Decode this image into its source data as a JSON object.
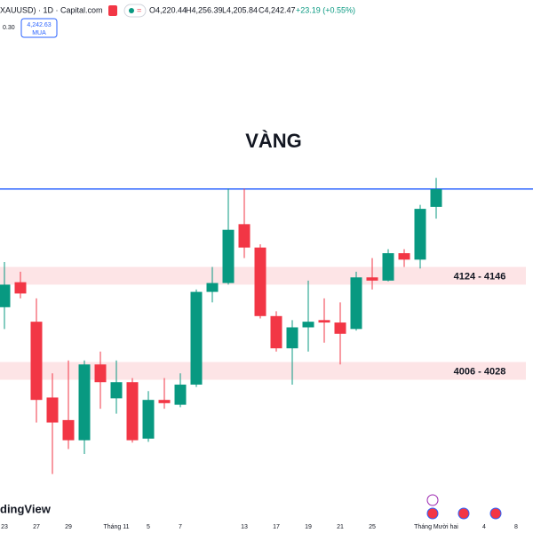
{
  "header": {
    "symbol": "XAUUSD) · 1D · Capital.com",
    "open": "O4,220.44",
    "high": "H4,256.39",
    "low": "L4,205.84",
    "close": "C4,242.47",
    "change": "+23.19 (+0.55%)",
    "spread": "0.30",
    "buy_price": "4,242.63",
    "buy_label": "MUA"
  },
  "logo": "dingView",
  "chart_data": {
    "type": "candlestick",
    "title": "VÀNG",
    "categories": [
      "23",
      null,
      "27",
      null,
      "29",
      null,
      null,
      "Tháng 11",
      null,
      "5",
      null,
      "7",
      null,
      null,
      null,
      "13",
      null,
      "17",
      null,
      "19",
      null,
      "21",
      null,
      "25",
      null,
      null,
      null,
      "Tháng Mười hai",
      null,
      null,
      "4",
      null,
      "8"
    ],
    "open": [
      4096,
      4127,
      4078,
      3984,
      3956,
      3931,
      4025,
      3983,
      4003,
      3933,
      3981,
      3975,
      4000,
      4115,
      4126,
      4199,
      4170,
      4085,
      4045,
      4071,
      4080,
      4077,
      4069,
      4133,
      4129,
      4163,
      4155,
      4220.44,
      null,
      null,
      null,
      null,
      null
    ],
    "high": [
      4152,
      4140,
      4107,
      4014,
      4030,
      4030,
      4041,
      4030,
      4008,
      3992,
      4008,
      4014,
      4118,
      4146,
      4243,
      4243,
      4174,
      4091,
      4080,
      4129,
      4107,
      4102,
      4140,
      4157,
      4168,
      4168,
      4223,
      4256.39,
      null,
      null,
      null,
      null,
      null
    ],
    "low": [
      4069,
      4107,
      3953,
      3889,
      3920,
      3914,
      3970,
      3964,
      3928,
      3929,
      3970,
      3972,
      3997,
      4102,
      4124,
      4157,
      4082,
      4041,
      4000,
      4041,
      4052,
      4025,
      4067,
      4118,
      4128,
      4146,
      4144,
      4205.84,
      null,
      null,
      null,
      null,
      null
    ],
    "close": [
      4124,
      4113,
      3981,
      3953,
      3931,
      4025,
      4003,
      4003,
      3931,
      3981,
      3977,
      4000,
      4115,
      4126,
      4192,
      4170,
      4085,
      4045,
      4071,
      4078,
      4077,
      4063,
      4133,
      4129,
      4163,
      4155,
      4218,
      4242.47,
      null,
      null,
      null,
      null,
      null
    ],
    "up_color": "#089981",
    "down_color": "#f23645",
    "ylim": [
      3860,
      4444
    ],
    "price_line": {
      "value": 4242.63,
      "color": "#2962ff"
    },
    "zones": [
      {
        "label": "4124 - 4146",
        "low": 4124,
        "high": 4146
      },
      {
        "label": "4006 - 4028",
        "low": 4006,
        "high": 4028
      }
    ],
    "zone_color": "#fde4e6"
  }
}
